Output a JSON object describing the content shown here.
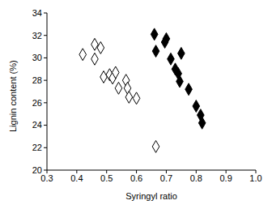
{
  "chart_data": {
    "type": "scatter",
    "x_label": "Syringyl ratio",
    "y_label": "Lignin content (%)",
    "xlim": [
      0.3,
      1.0
    ],
    "xticks": [
      0.3,
      0.4,
      0.5,
      0.6,
      0.7,
      0.8,
      0.9,
      {
        "value": 1,
        "label": "1.0"
      }
    ],
    "ylim": [
      20,
      34
    ],
    "yticks": [
      20,
      22,
      24,
      26,
      28,
      30,
      32,
      34
    ],
    "grid": false,
    "series": [
      {
        "color": "#000000",
        "marker": "diamond_open",
        "x": [
          0.42,
          0.46,
          0.46,
          0.48,
          0.49,
          0.51,
          0.52,
          0.53,
          0.54,
          0.565,
          0.57,
          0.575,
          0.6,
          0.665
        ],
        "values": [
          30.3,
          31.2,
          29.9,
          30.9,
          28.3,
          28.5,
          28.2,
          28.7,
          27.3,
          28.0,
          27.3,
          26.5,
          26.4,
          22.1
        ]
      },
      {
        "color": "#000000",
        "marker": "diamond",
        "x": [
          0.66,
          0.665,
          0.695,
          0.7,
          0.715,
          0.73,
          0.74,
          0.745,
          0.75,
          0.775,
          0.8,
          0.815,
          0.82
        ],
        "values": [
          32.1,
          30.6,
          31.4,
          31.7,
          29.9,
          29.0,
          28.6,
          27.9,
          30.4,
          27.2,
          25.7,
          24.9,
          24.2
        ]
      }
    ]
  }
}
